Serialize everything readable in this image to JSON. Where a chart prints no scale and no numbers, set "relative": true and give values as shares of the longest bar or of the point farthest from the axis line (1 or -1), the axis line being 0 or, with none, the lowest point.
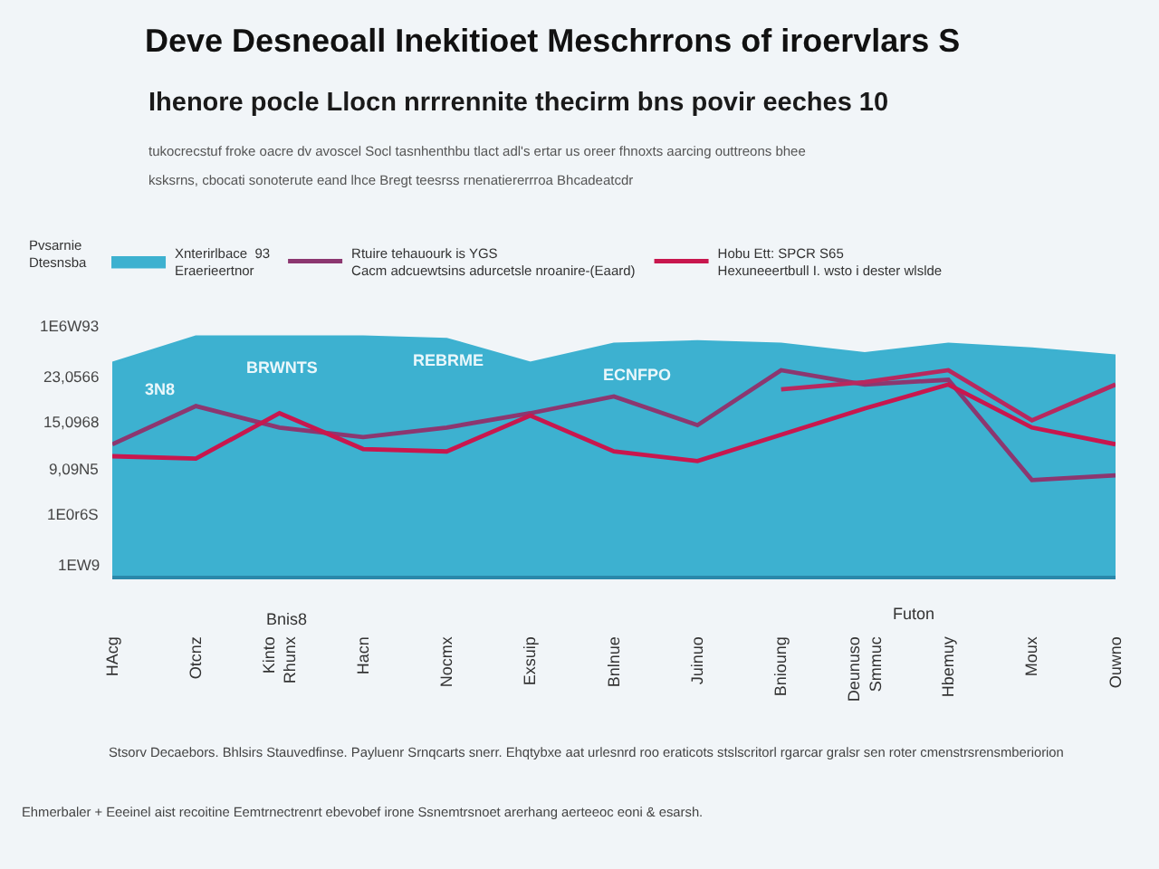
{
  "chart_data": {
    "type": "line",
    "relative": true,
    "title": "Deve Desneoall Inekitioet Meschrrons of iroervlars S",
    "subtitle": "Ihenore pocle Llocn nrrrennite thecirm bns povir eeches 10\ntukocrecstuf froke oacre dv avoscel Socl tasnhenthbu tlact adl's ertar us oreer fhnoxts aarcing outtreons bhee\nksksrns, cbocati sonoterute eand lhce Bregt teesrss rnenatiererrroa Bhcadeatcdr",
    "legend_title": "Pvsarnie\nDtesnsba",
    "legend": "top",
    "categories": [
      "HAcg",
      "Otcnz",
      "Kinto\nRhunx",
      "Hacn",
      "Nocmx",
      "Exsuip",
      "Bnlnue",
      "Juinuo",
      "Bnioung",
      "Deunuso\nSmmuc",
      "Hbemuy",
      "Moux",
      "Ouwno"
    ],
    "series": [
      {
        "type": "area",
        "name": "Xnterirlbace  93\nEraerieertnor",
        "color": "#3db1d0",
        "values": [
          0.89,
          1.0,
          1.0,
          1.0,
          0.99,
          0.89,
          0.97,
          0.98,
          0.97,
          0.93,
          0.97,
          0.95,
          0.92
        ]
      },
      {
        "name": "Rtuire tehauourk is YGS\nCacm adcuewtsins adurcetsle nroanire-(Eaard)",
        "color": "#8c3770",
        "values": [
          0.55,
          0.71,
          0.62,
          0.58,
          0.62,
          0.68,
          0.75,
          0.63,
          0.86,
          0.8,
          0.82,
          0.4,
          0.42
        ]
      },
      {
        "name": "Hobu Ett: SPCR S65\nHexuneeertbull I. wsto i dester wlslde",
        "color": "#c8174e",
        "values": [
          0.5,
          0.49,
          0.68,
          0.53,
          0.52,
          0.67,
          0.52,
          0.48,
          0.59,
          0.7,
          0.8,
          0.62,
          0.55
        ]
      },
      {
        "color": "#b8285e",
        "values": [
          null,
          null,
          null,
          null,
          null,
          null,
          null,
          null,
          0.78,
          0.81,
          0.86,
          0.65,
          0.8
        ]
      }
    ],
    "annotations": [
      "1E6W93",
      "23,0566",
      "15,0968",
      "9,09N5",
      "1E0r6S",
      "1EW9",
      "3N8",
      "BRWNTS",
      "REBRME",
      "ECNFPO",
      "Bnis8",
      "Futon",
      "Stsorv Decaebors. Bhlsirs Stauvedfinse. Payluenr Srnqcarts snerr. Ehqtybxe aat urlesnrd roo eraticots stslscritorl rgarcar gralsr sen roter cmenstrsrensmberiorion",
      "Ehmerbaler + Eeeinel aist recoitine Eemtrnectrenrt ebevobef irone Ssnemtrsnoet arerhang aerteeoc eoni & esarsh."
    ]
  }
}
